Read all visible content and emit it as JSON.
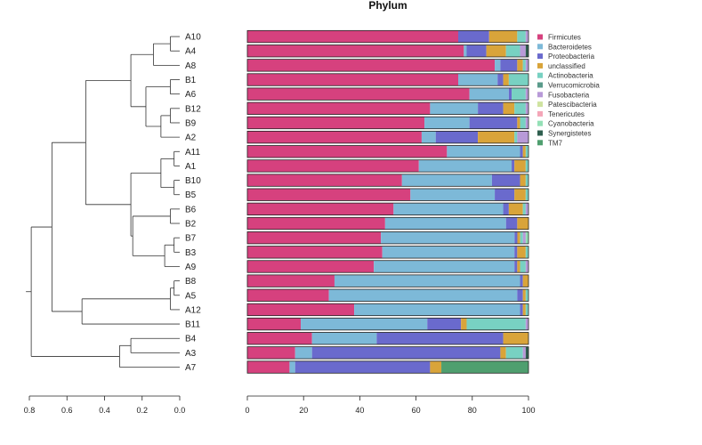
{
  "chart_data": {
    "type": "bar",
    "orientation": "horizontal",
    "stacked": true,
    "title": "Phylum",
    "xlim": [
      0,
      100
    ],
    "x_ticks": [
      0,
      20,
      40,
      60,
      80,
      100
    ],
    "legend_position": "right",
    "categories": [
      "A10",
      "A4",
      "A8",
      "B1",
      "A6",
      "B12",
      "B9",
      "A2",
      "A11",
      "A1",
      "B10",
      "B5",
      "B6",
      "B2",
      "B7",
      "B3",
      "A9",
      "B8",
      "A5",
      "A12",
      "B11",
      "B4",
      "A3",
      "A7"
    ],
    "series": [
      {
        "name": "Firmicutes",
        "color": "#d6417e",
        "values": [
          75,
          77,
          88,
          75,
          79,
          65,
          63,
          62,
          71,
          61,
          55,
          58,
          52,
          49,
          48,
          48,
          45,
          31,
          29,
          38,
          19,
          23,
          17,
          15
        ]
      },
      {
        "name": "Bacteroidetes",
        "color": "#7db9d8",
        "values": [
          0,
          1,
          2,
          14,
          14,
          17,
          16,
          5,
          26,
          33,
          32,
          30,
          39,
          43,
          48,
          47,
          50,
          66,
          67,
          59,
          45,
          23,
          6,
          2
        ]
      },
      {
        "name": "Proteobacteria",
        "color": "#6a6acd",
        "values": [
          11,
          7,
          6,
          2,
          1,
          9,
          17,
          15,
          1,
          1,
          10,
          7,
          2,
          4,
          1,
          1,
          1,
          1,
          2,
          1,
          12,
          45,
          67,
          48
        ]
      },
      {
        "name": "unclassified",
        "color": "#d9a43a",
        "values": [
          10,
          7,
          2,
          2,
          0,
          4,
          1,
          13,
          1,
          4,
          2,
          4,
          5,
          4,
          1,
          3,
          1,
          2,
          1,
          1,
          2,
          9,
          2,
          4
        ]
      },
      {
        "name": "Actinobacteria",
        "color": "#78d1c2",
        "values": [
          3,
          5,
          1,
          7,
          5,
          4,
          2,
          1,
          1,
          1,
          1,
          1,
          1,
          0,
          1,
          1,
          2,
          0,
          1,
          1,
          21,
          0,
          6,
          0
        ]
      },
      {
        "name": "Verrucomicrobia",
        "color": "#5a9b8b",
        "values": [
          0,
          0,
          0,
          0,
          0,
          0,
          0,
          0,
          0,
          0,
          0,
          0,
          0,
          0,
          0,
          0,
          0,
          0,
          0,
          0,
          0,
          0,
          0,
          0
        ]
      },
      {
        "name": "Fusobacteria",
        "color": "#b89ad8",
        "values": [
          1,
          2,
          1,
          0,
          1,
          1,
          1,
          4,
          0,
          0,
          0,
          0,
          1,
          0,
          1,
          0,
          1,
          0,
          0,
          0,
          1,
          0,
          1,
          0
        ]
      },
      {
        "name": "Patescibacteria",
        "color": "#cfe3a0",
        "values": [
          0,
          0,
          0,
          0,
          0,
          0,
          0,
          0,
          0,
          0,
          0,
          0,
          0,
          0,
          0,
          0,
          0,
          0,
          0,
          0,
          0,
          0,
          0,
          0
        ]
      },
      {
        "name": "Tenericutes",
        "color": "#f4a6b8",
        "values": [
          0,
          0,
          0,
          0,
          0,
          0,
          0,
          0,
          0,
          0,
          0,
          0,
          0,
          0,
          0,
          0,
          0,
          0,
          0,
          0,
          0,
          0,
          0,
          0
        ]
      },
      {
        "name": "Cyanobacteria",
        "color": "#94e0b6",
        "values": [
          0,
          0,
          0,
          0,
          0,
          0,
          0,
          0,
          0,
          0,
          0,
          0,
          0,
          0,
          1,
          0,
          0,
          0,
          0,
          0,
          0,
          0,
          0,
          0
        ]
      },
      {
        "name": "Synergistetes",
        "color": "#2f5f4f",
        "values": [
          0,
          1,
          0,
          0,
          0,
          0,
          0,
          0,
          0,
          0,
          0,
          0,
          0,
          0,
          0,
          0,
          0,
          0,
          0,
          0,
          0,
          0,
          1,
          0
        ]
      },
      {
        "name": "TM7",
        "color": "#4f9f6f",
        "values": [
          0,
          0,
          0,
          0,
          0,
          0,
          0,
          0,
          0,
          0,
          0,
          0,
          0,
          0,
          0,
          0,
          0,
          0,
          0,
          0,
          0,
          0,
          0,
          31
        ]
      }
    ],
    "dendrogram": {
      "axis_ticks": [
        "0.8",
        "0.6",
        "0.4",
        "0.2",
        "0.0"
      ],
      "axis_values": [
        0.8,
        0.6,
        0.4,
        0.2,
        0.0
      ],
      "tree": [
        0.79,
        [
          0.68,
          [
            0.5,
            [
              0.26,
              [
                0.14,
                [
                  0.05,
                  "A10",
                  "A4"
                ],
                "A8"
              ],
              [
                0.18,
                [
                  0.05,
                  "B1",
                  "A6"
                ],
                [
                  0.1,
                  [
                    0.05,
                    "B12",
                    "B9"
                  ],
                  "A2"
                ]
              ]
            ],
            [
              0.26,
              [
                0.1,
                [
                  0.03,
                  "A11",
                  "A1"
                ],
                [
                  0.03,
                  "B10",
                  "B5"
                ]
              ],
              [
                0.25,
                [
                  0.05,
                  "B6",
                  "B2"
                ],
                [
                  0.08,
                  [
                    0.03,
                    "B7",
                    "B3"
                  ],
                  "A9"
                ]
              ]
            ]
          ],
          [
            0.52,
            [
              0.05,
              [
                0.03,
                "B8",
                "A5"
              ],
              "A12"
            ],
            "B11"
          ]
        ],
        [
          0.32,
          [
            0.26,
            "B4",
            "A3"
          ],
          "A7"
        ]
      ]
    }
  }
}
